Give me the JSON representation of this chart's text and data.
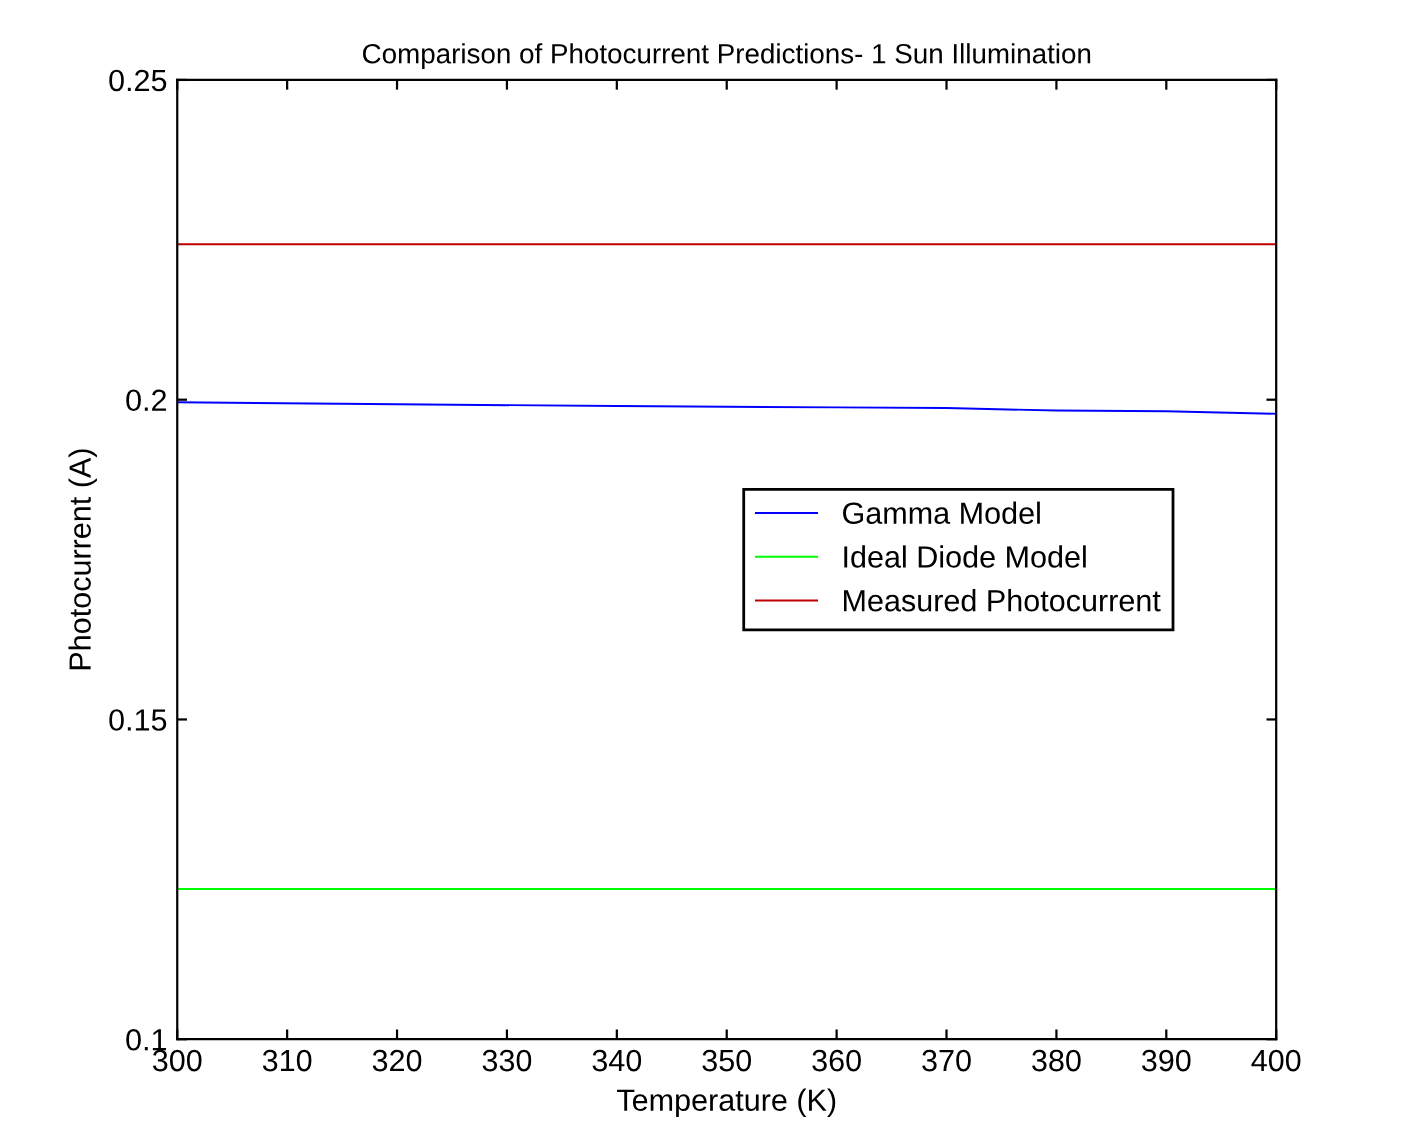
{
  "chart_data": {
    "type": "line",
    "title": "Comparison of Photocurrent Predictions- 1 Sun Illumination",
    "xlabel": "Temperature (K)",
    "ylabel": "Photocurrent (A)",
    "series": [
      {
        "name": "Gamma Model",
        "color": "#0000ff",
        "x": [
          300,
          320,
          340,
          360,
          370,
          380,
          390,
          400
        ],
        "values": [
          0.1996,
          0.1993,
          0.199,
          0.1988,
          0.1987,
          0.1983,
          0.1982,
          0.1978
        ]
      },
      {
        "name": "Ideal Diode Model",
        "color": "#00ff00",
        "x": [
          300,
          400
        ],
        "values": [
          0.1235,
          0.1235
        ]
      },
      {
        "name": "Measured Photocurrent",
        "color": "#c00000",
        "x": [
          300,
          400
        ],
        "values": [
          0.2243,
          0.2243
        ]
      }
    ],
    "xlim": [
      300,
      400
    ],
    "xticks": [
      300,
      310,
      320,
      330,
      340,
      350,
      360,
      370,
      380,
      390,
      400
    ],
    "ylim": [
      0.1,
      0.25
    ],
    "yticks": [
      0.1,
      0.15,
      0.2,
      0.25
    ],
    "grid": false,
    "legend": "center right"
  }
}
